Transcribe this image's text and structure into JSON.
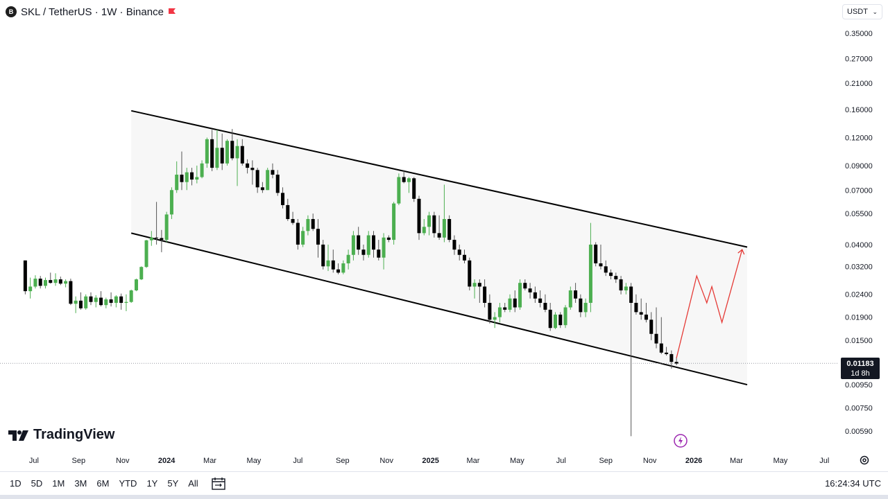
{
  "header": {
    "symbol_badge": "B",
    "title": "SKL / TetherUS · 1W · Binance"
  },
  "currency": {
    "label": "USDT"
  },
  "price_axis": {
    "ticks": [
      "0.35000",
      "0.27000",
      "0.21000",
      "0.16000",
      "0.12000",
      "0.09000",
      "0.07000",
      "0.05500",
      "0.04000",
      "0.03200",
      "0.02400",
      "0.01900",
      "0.01500",
      "0.00950",
      "0.00750",
      "0.00590"
    ]
  },
  "last_price": {
    "price": "0.01183",
    "countdown": "1d 8h"
  },
  "time_axis": {
    "labels": [
      "Jul",
      "Sep",
      "Nov",
      "2024",
      "Mar",
      "May",
      "Jul",
      "Sep",
      "Nov",
      "2025",
      "Mar",
      "May",
      "Jul",
      "Sep",
      "Nov",
      "2026",
      "Mar",
      "May",
      "Jul"
    ]
  },
  "logo": {
    "text": "TradingView"
  },
  "ranges": [
    "1D",
    "5D",
    "1M",
    "3M",
    "6M",
    "YTD",
    "1Y",
    "5Y",
    "All"
  ],
  "clock": "16:24:34 UTC",
  "colors": {
    "up": "#4caf50",
    "down": "#000000",
    "channel": "#000000",
    "projection": "#e53935",
    "last_price_bg": "#131722"
  },
  "chart_data": {
    "type": "candlestick",
    "title": "SKL / TetherUS · 1W · Binance",
    "y_scale": "log",
    "ylim": [
      0.0052,
      0.37
    ],
    "candle_interval": "weekly",
    "ohlc": [
      [
        "2023-06-19",
        0.034,
        0.034,
        0.024,
        0.0248
      ],
      [
        "2023-06-26",
        0.0248,
        0.0285,
        0.023,
        0.026
      ],
      [
        "2023-07-03",
        0.026,
        0.0292,
        0.0255,
        0.0282
      ],
      [
        "2023-07-10",
        0.0282,
        0.029,
        0.0255,
        0.0262
      ],
      [
        "2023-07-17",
        0.0262,
        0.0285,
        0.0255,
        0.0278
      ],
      [
        "2023-07-24",
        0.0278,
        0.03,
        0.0268,
        0.027
      ],
      [
        "2023-07-31",
        0.027,
        0.0298,
        0.0262,
        0.028
      ],
      [
        "2023-08-07",
        0.028,
        0.0288,
        0.0264,
        0.0268
      ],
      [
        "2023-08-14",
        0.0268,
        0.028,
        0.0258,
        0.0275
      ],
      [
        "2023-08-21",
        0.0275,
        0.0282,
        0.0215,
        0.0218
      ],
      [
        "2023-08-28",
        0.0218,
        0.0235,
        0.0198,
        0.0225
      ],
      [
        "2023-09-04",
        0.0225,
        0.0245,
        0.0205,
        0.0208
      ],
      [
        "2023-09-11",
        0.0208,
        0.024,
        0.0205,
        0.0235
      ],
      [
        "2023-09-18",
        0.0235,
        0.0245,
        0.0215,
        0.0222
      ],
      [
        "2023-09-25",
        0.0222,
        0.0238,
        0.021,
        0.0232
      ],
      [
        "2023-10-02",
        0.0232,
        0.0248,
        0.0212,
        0.0215
      ],
      [
        "2023-10-09",
        0.0215,
        0.0232,
        0.0208,
        0.0228
      ],
      [
        "2023-10-16",
        0.0228,
        0.0245,
        0.0212,
        0.022
      ],
      [
        "2023-10-23",
        0.022,
        0.0238,
        0.021,
        0.0235
      ],
      [
        "2023-10-30",
        0.0235,
        0.0242,
        0.0205,
        0.022
      ],
      [
        "2023-11-06",
        0.022,
        0.024,
        0.0202,
        0.0222
      ],
      [
        "2023-11-13",
        0.0222,
        0.0252,
        0.022,
        0.025
      ],
      [
        "2023-11-20",
        0.025,
        0.0282,
        0.0248,
        0.028
      ],
      [
        "2023-11-27",
        0.028,
        0.032,
        0.0278,
        0.0318
      ],
      [
        "2023-12-04",
        0.0318,
        0.042,
        0.0315,
        0.0418
      ],
      [
        "2023-12-11",
        0.0418,
        0.046,
        0.0395,
        0.043
      ],
      [
        "2023-12-18",
        0.043,
        0.062,
        0.04,
        0.0428
      ],
      [
        "2023-12-25",
        0.0428,
        0.0465,
        0.037,
        0.042
      ],
      [
        "2024-01-01",
        0.042,
        0.056,
        0.041,
        0.0545
      ],
      [
        "2024-01-08",
        0.0545,
        0.072,
        0.052,
        0.07
      ],
      [
        "2024-01-15",
        0.07,
        0.094,
        0.068,
        0.082
      ],
      [
        "2024-01-22",
        0.082,
        0.104,
        0.07,
        0.076
      ],
      [
        "2024-01-29",
        0.076,
        0.088,
        0.07,
        0.084
      ],
      [
        "2024-02-05",
        0.084,
        0.088,
        0.0735,
        0.078
      ],
      [
        "2024-02-12",
        0.078,
        0.09,
        0.075,
        0.08
      ],
      [
        "2024-02-19",
        0.08,
        0.095,
        0.079,
        0.092
      ],
      [
        "2024-02-26",
        0.092,
        0.12,
        0.088,
        0.118
      ],
      [
        "2024-03-04",
        0.118,
        0.13,
        0.085,
        0.088
      ],
      [
        "2024-03-11",
        0.088,
        0.13,
        0.086,
        0.108
      ],
      [
        "2024-03-18",
        0.108,
        0.125,
        0.086,
        0.092
      ],
      [
        "2024-03-25",
        0.092,
        0.118,
        0.09,
        0.116
      ],
      [
        "2024-04-01",
        0.116,
        0.131,
        0.095,
        0.097
      ],
      [
        "2024-04-08",
        0.097,
        0.118,
        0.073,
        0.11
      ],
      [
        "2024-04-15",
        0.11,
        0.118,
        0.09,
        0.092
      ],
      [
        "2024-04-22",
        0.092,
        0.096,
        0.083,
        0.088
      ],
      [
        "2024-04-29",
        0.088,
        0.095,
        0.074,
        0.086
      ],
      [
        "2024-05-06",
        0.086,
        0.088,
        0.068,
        0.072
      ],
      [
        "2024-05-13",
        0.072,
        0.076,
        0.068,
        0.07
      ],
      [
        "2024-05-20",
        0.07,
        0.088,
        0.07,
        0.086
      ],
      [
        "2024-05-27",
        0.086,
        0.092,
        0.079,
        0.082
      ],
      [
        "2024-06-03",
        0.082,
        0.086,
        0.066,
        0.068
      ],
      [
        "2024-06-10",
        0.068,
        0.072,
        0.058,
        0.06
      ],
      [
        "2024-06-17",
        0.06,
        0.064,
        0.051,
        0.052
      ],
      [
        "2024-06-24",
        0.052,
        0.056,
        0.049,
        0.05
      ],
      [
        "2024-07-01",
        0.05,
        0.052,
        0.038,
        0.04
      ],
      [
        "2024-07-08",
        0.04,
        0.048,
        0.039,
        0.046
      ],
      [
        "2024-07-15",
        0.046,
        0.054,
        0.044,
        0.052
      ],
      [
        "2024-07-22",
        0.052,
        0.055,
        0.046,
        0.047
      ],
      [
        "2024-07-29",
        0.047,
        0.052,
        0.035,
        0.04
      ],
      [
        "2024-08-05",
        0.04,
        0.042,
        0.031,
        0.032
      ],
      [
        "2024-08-12",
        0.032,
        0.04,
        0.0305,
        0.034
      ],
      [
        "2024-08-19",
        0.034,
        0.038,
        0.03,
        0.031
      ],
      [
        "2024-08-26",
        0.031,
        0.033,
        0.0295,
        0.03
      ],
      [
        "2024-09-02",
        0.03,
        0.034,
        0.0295,
        0.033
      ],
      [
        "2024-09-09",
        0.033,
        0.038,
        0.031,
        0.036
      ],
      [
        "2024-09-16",
        0.036,
        0.046,
        0.034,
        0.044
      ],
      [
        "2024-09-23",
        0.044,
        0.048,
        0.036,
        0.038
      ],
      [
        "2024-09-30",
        0.038,
        0.04,
        0.034,
        0.036
      ],
      [
        "2024-10-07",
        0.036,
        0.046,
        0.035,
        0.044
      ],
      [
        "2024-10-14",
        0.044,
        0.046,
        0.035,
        0.038
      ],
      [
        "2024-10-21",
        0.038,
        0.042,
        0.034,
        0.035
      ],
      [
        "2024-10-28",
        0.035,
        0.045,
        0.031,
        0.043
      ],
      [
        "2024-11-04",
        0.043,
        0.044,
        0.041,
        0.042
      ],
      [
        "2024-11-11",
        0.042,
        0.062,
        0.04,
        0.061
      ],
      [
        "2024-11-18",
        0.061,
        0.083,
        0.06,
        0.08
      ],
      [
        "2024-11-25",
        0.08,
        0.086,
        0.075,
        0.076
      ],
      [
        "2024-12-02",
        0.076,
        0.08,
        0.068,
        0.079
      ],
      [
        "2024-12-09",
        0.079,
        0.08,
        0.062,
        0.064
      ],
      [
        "2024-12-16",
        0.064,
        0.066,
        0.042,
        0.045
      ],
      [
        "2024-12-23",
        0.045,
        0.052,
        0.044,
        0.048
      ],
      [
        "2024-12-30",
        0.048,
        0.056,
        0.044,
        0.054
      ],
      [
        "2025-01-06",
        0.054,
        0.056,
        0.043,
        0.045
      ],
      [
        "2025-01-13",
        0.045,
        0.054,
        0.042,
        0.043
      ],
      [
        "2025-01-20",
        0.043,
        0.074,
        0.041,
        0.052
      ],
      [
        "2025-01-27",
        0.052,
        0.054,
        0.041,
        0.042
      ],
      [
        "2025-02-03",
        0.042,
        0.044,
        0.036,
        0.038
      ],
      [
        "2025-02-10",
        0.038,
        0.04,
        0.034,
        0.036
      ],
      [
        "2025-02-17",
        0.036,
        0.038,
        0.033,
        0.034
      ],
      [
        "2025-02-24",
        0.034,
        0.035,
        0.025,
        0.026
      ],
      [
        "2025-03-03",
        0.026,
        0.028,
        0.023,
        0.027
      ],
      [
        "2025-03-10",
        0.027,
        0.028,
        0.022,
        0.026
      ],
      [
        "2025-03-17",
        0.026,
        0.028,
        0.021,
        0.022
      ],
      [
        "2025-03-24",
        0.022,
        0.024,
        0.0178,
        0.0185
      ],
      [
        "2025-03-31",
        0.0185,
        0.02,
        0.017,
        0.019
      ],
      [
        "2025-04-07",
        0.019,
        0.022,
        0.018,
        0.021
      ],
      [
        "2025-04-14",
        0.021,
        0.022,
        0.02,
        0.0205
      ],
      [
        "2025-04-21",
        0.0205,
        0.024,
        0.02,
        0.023
      ],
      [
        "2025-04-28",
        0.023,
        0.025,
        0.02,
        0.021
      ],
      [
        "2025-05-05",
        0.021,
        0.028,
        0.0205,
        0.027
      ],
      [
        "2025-05-12",
        0.027,
        0.028,
        0.025,
        0.0255
      ],
      [
        "2025-05-19",
        0.0255,
        0.027,
        0.023,
        0.0245
      ],
      [
        "2025-05-26",
        0.0245,
        0.026,
        0.022,
        0.023
      ],
      [
        "2025-06-02",
        0.023,
        0.025,
        0.021,
        0.022
      ],
      [
        "2025-06-09",
        0.022,
        0.024,
        0.02,
        0.0205
      ],
      [
        "2025-06-16",
        0.0205,
        0.022,
        0.0165,
        0.017
      ],
      [
        "2025-06-23",
        0.017,
        0.02,
        0.0168,
        0.0195
      ],
      [
        "2025-06-30",
        0.0195,
        0.02,
        0.017,
        0.0175
      ],
      [
        "2025-07-07",
        0.0175,
        0.0215,
        0.017,
        0.021
      ],
      [
        "2025-07-14",
        0.021,
        0.026,
        0.0205,
        0.025
      ],
      [
        "2025-07-21",
        0.025,
        0.027,
        0.022,
        0.023
      ],
      [
        "2025-07-28",
        0.023,
        0.024,
        0.019,
        0.02
      ],
      [
        "2025-08-04",
        0.02,
        0.023,
        0.019,
        0.022
      ],
      [
        "2025-08-11",
        0.022,
        0.05,
        0.02,
        0.04
      ],
      [
        "2025-08-18",
        0.04,
        0.041,
        0.032,
        0.033
      ],
      [
        "2025-08-25",
        0.033,
        0.04,
        0.031,
        0.032
      ],
      [
        "2025-09-01",
        0.032,
        0.034,
        0.029,
        0.03
      ],
      [
        "2025-09-08",
        0.03,
        0.031,
        0.028,
        0.029
      ],
      [
        "2025-09-15",
        0.029,
        0.03,
        0.027,
        0.028
      ],
      [
        "2025-09-22",
        0.028,
        0.029,
        0.024,
        0.025
      ],
      [
        "2025-09-29",
        0.025,
        0.027,
        0.024,
        0.026
      ],
      [
        "2025-10-06",
        0.026,
        0.027,
        0.0056,
        0.022
      ],
      [
        "2025-10-13",
        0.022,
        0.024,
        0.0195,
        0.02
      ],
      [
        "2025-10-20",
        0.02,
        0.023,
        0.0185,
        0.0195
      ],
      [
        "2025-10-27",
        0.0195,
        0.022,
        0.018,
        0.0185
      ],
      [
        "2025-11-03",
        0.0185,
        0.02,
        0.015,
        0.016
      ],
      [
        "2025-11-10",
        0.016,
        0.021,
        0.0138,
        0.0145
      ],
      [
        "2025-11-17",
        0.0145,
        0.019,
        0.013,
        0.0132
      ],
      [
        "2025-11-24",
        0.0132,
        0.014,
        0.0128,
        0.013
      ],
      [
        "2025-12-01",
        0.013,
        0.0135,
        0.0112,
        0.012
      ],
      [
        "2025-12-08",
        0.012,
        0.0126,
        0.0116,
        0.0118
      ]
    ],
    "last_price": 0.01183,
    "channel": {
      "upper": [
        [
          "2023-11-13",
          0.158
        ],
        [
          "2026-03-16",
          0.039
        ]
      ],
      "lower": [
        [
          "2023-11-13",
          0.045
        ],
        [
          "2026-03-16",
          0.0095
        ]
      ]
    },
    "projection": [
      [
        "2025-12-08",
        0.0125
      ],
      [
        "2026-01-05",
        0.029
      ],
      [
        "2026-01-19",
        0.022
      ],
      [
        "2026-01-26",
        0.026
      ],
      [
        "2026-02-09",
        0.018
      ],
      [
        "2026-03-09",
        0.038
      ]
    ]
  }
}
